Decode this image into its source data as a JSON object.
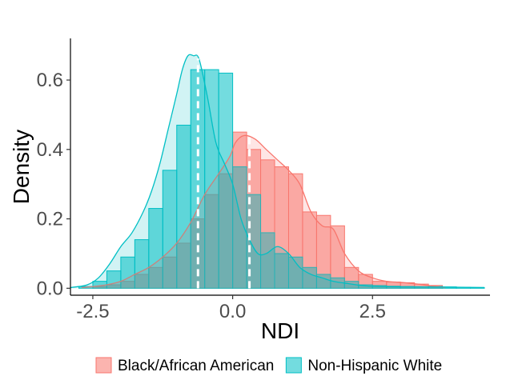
{
  "chart_data": {
    "type": "bar",
    "subtype": "overlaid-histogram-with-density",
    "xlabel": "NDI",
    "ylabel": "Density",
    "xlim": [
      -2.9,
      4.6
    ],
    "ylim": [
      -0.02,
      0.72
    ],
    "x_ticks": [
      -2.5,
      0.0,
      2.5
    ],
    "x_tick_labels": [
      "-2.5",
      "0.0",
      "2.5"
    ],
    "y_ticks": [
      0.0,
      0.2,
      0.4,
      0.6
    ],
    "y_tick_labels": [
      "0.0",
      "0.2",
      "0.4",
      "0.6"
    ],
    "grid": false,
    "legend_position": "bottom",
    "bin_width": 0.25,
    "series": [
      {
        "name": "Black/African American",
        "color": "#F8766D",
        "bins_left": [
          -2.5,
          -2.25,
          -2.0,
          -1.75,
          -1.5,
          -1.25,
          -1.0,
          -0.75,
          -0.5,
          -0.25,
          0.0,
          0.25,
          0.5,
          0.75,
          1.0,
          1.25,
          1.5,
          1.75,
          2.0,
          2.25,
          2.5,
          2.75,
          3.0,
          3.25,
          3.5
        ],
        "density": [
          0.005,
          0.01,
          0.02,
          0.04,
          0.06,
          0.09,
          0.13,
          0.2,
          0.27,
          0.33,
          0.45,
          0.4,
          0.37,
          0.35,
          0.33,
          0.22,
          0.21,
          0.18,
          0.06,
          0.04,
          0.02,
          0.018,
          0.016,
          0.012,
          0.008
        ],
        "mean": 0.3,
        "density_curve": {
          "x": [
            -2.7,
            -2.5,
            -2.25,
            -2.0,
            -1.75,
            -1.5,
            -1.25,
            -1.0,
            -0.75,
            -0.5,
            -0.25,
            -0.05,
            0.05,
            0.2,
            0.4,
            0.6,
            0.8,
            1.0,
            1.2,
            1.4,
            1.6,
            1.8,
            2.0,
            2.25,
            2.5,
            2.75,
            3.0,
            3.25,
            3.5,
            3.8
          ],
          "y": [
            0.002,
            0.005,
            0.01,
            0.02,
            0.04,
            0.06,
            0.09,
            0.13,
            0.19,
            0.27,
            0.33,
            0.38,
            0.42,
            0.44,
            0.43,
            0.4,
            0.37,
            0.34,
            0.3,
            0.22,
            0.18,
            0.17,
            0.1,
            0.05,
            0.03,
            0.02,
            0.017,
            0.013,
            0.008,
            0.002
          ]
        }
      },
      {
        "name": "Non-Hispanic White",
        "color": "#00BFC4",
        "bins_left": [
          -2.75,
          -2.5,
          -2.25,
          -2.0,
          -1.75,
          -1.5,
          -1.25,
          -1.0,
          -0.75,
          -0.5,
          -0.25,
          0.0,
          0.25,
          0.5,
          0.75,
          1.0,
          1.25,
          1.5,
          1.75,
          2.0,
          2.25,
          2.5,
          2.75,
          3.0,
          3.25,
          3.5,
          3.75,
          4.0,
          4.25
        ],
        "density": [
          0.005,
          0.02,
          0.05,
          0.09,
          0.14,
          0.23,
          0.34,
          0.47,
          0.63,
          0.63,
          0.62,
          0.35,
          0.27,
          0.16,
          0.1,
          0.09,
          0.06,
          0.04,
          0.03,
          0.02,
          0.01,
          0.008,
          0.006,
          0.005,
          0.004,
          0.005,
          0.004,
          0.003,
          0.002
        ],
        "mean": -0.62,
        "density_curve": {
          "x": [
            -2.9,
            -2.6,
            -2.4,
            -2.2,
            -2.0,
            -1.8,
            -1.6,
            -1.45,
            -1.3,
            -1.15,
            -1.0,
            -0.9,
            -0.8,
            -0.7,
            -0.6,
            -0.45,
            -0.3,
            -0.15,
            0.0,
            0.15,
            0.3,
            0.45,
            0.6,
            0.8,
            1.0,
            1.2,
            1.4,
            1.6,
            1.8,
            2.0,
            2.3,
            2.6,
            3.0,
            3.5,
            4.0,
            4.5
          ],
          "y": [
            0.002,
            0.01,
            0.03,
            0.07,
            0.12,
            0.16,
            0.22,
            0.28,
            0.36,
            0.46,
            0.56,
            0.63,
            0.67,
            0.67,
            0.66,
            0.55,
            0.42,
            0.36,
            0.3,
            0.2,
            0.14,
            0.1,
            0.1,
            0.12,
            0.1,
            0.06,
            0.04,
            0.03,
            0.02,
            0.015,
            0.008,
            0.005,
            0.004,
            0.004,
            0.003,
            0.002
          ]
        }
      }
    ]
  }
}
